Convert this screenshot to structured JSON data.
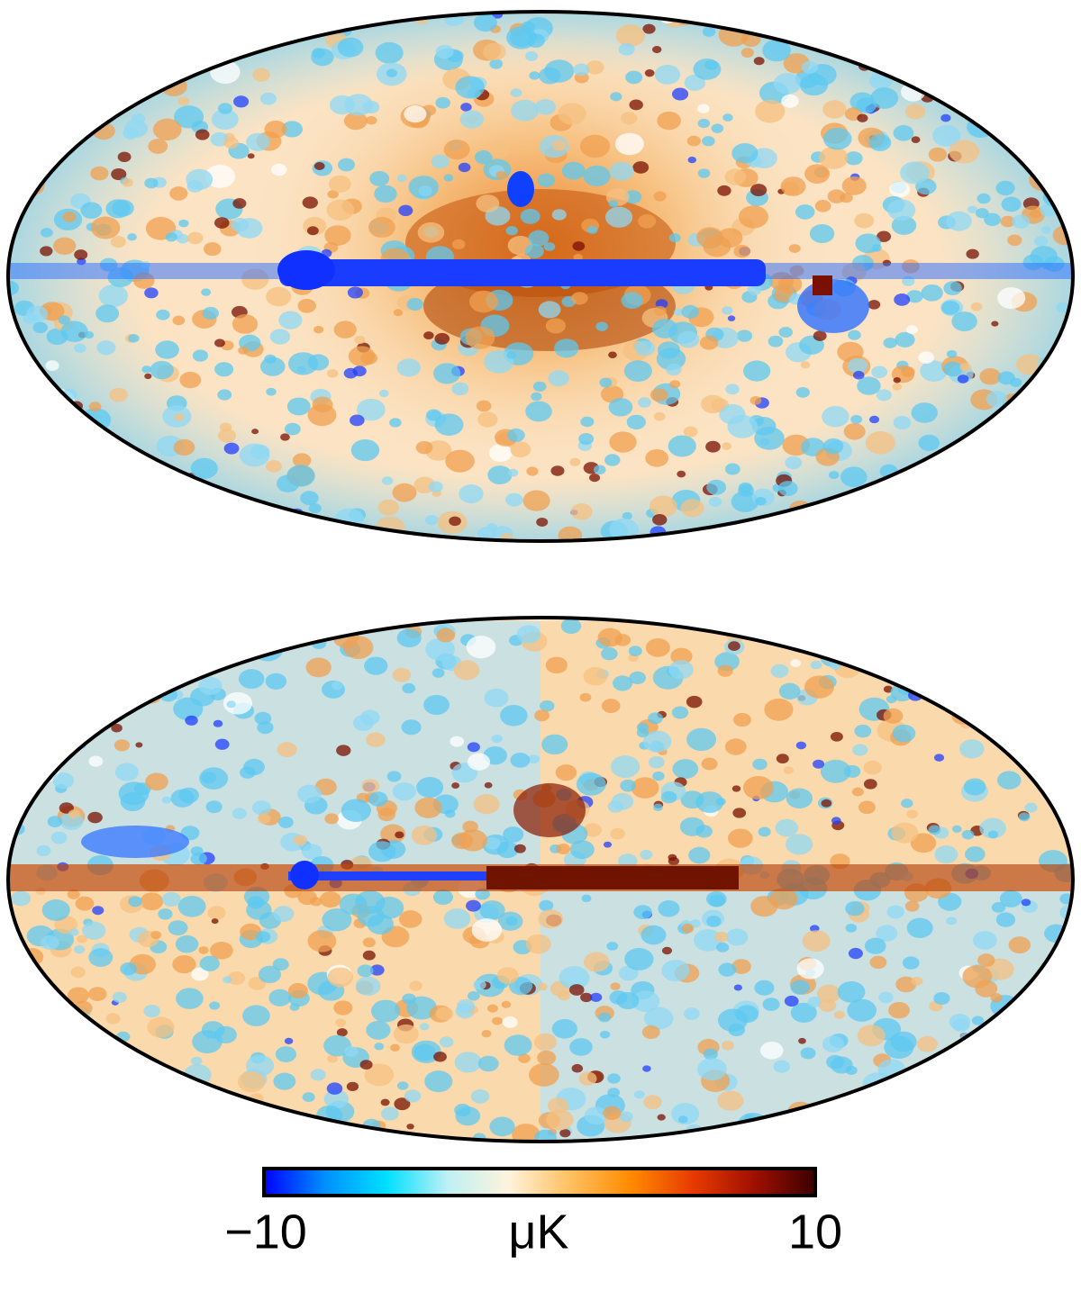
{
  "colorbar": {
    "label": "μK",
    "lim": [
      -10,
      10
    ],
    "ticks": [
      {
        "value": -10,
        "label": "−10"
      },
      10
    ],
    "colors": [
      "#0000ff",
      "#0090ff",
      "#00e0ff",
      "#bff0f4",
      "#fff3dc",
      "#ffc060",
      "#ff8a00",
      "#e83a00",
      "#a01000",
      "#3a0000"
    ]
  }
}
